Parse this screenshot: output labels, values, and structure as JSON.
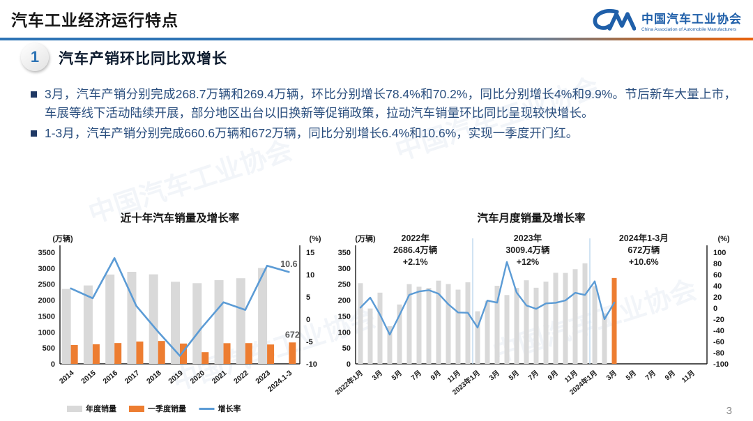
{
  "header": {
    "title": "汽车工业经济运行特点",
    "logo": {
      "monogram": "CM",
      "org_cn": "中国汽车工业协会",
      "org_en": "China Association of Automobile Manufacturers"
    }
  },
  "watermark": "中国汽车工业协会",
  "section": {
    "number": "1",
    "title": "汽车产销环比同比双增长"
  },
  "bullets": [
    "3月，汽车产销分别完成268.7万辆和269.4万辆，环比分别增长78.4%和70.2%，同比分别增长4%和9.9%。节后新车大量上市，车展等线下活动陆续开展，部分地区出台以旧换新等促销政策，拉动汽车销量环比同比呈现较快增长。",
    "1-3月，汽车产销分别完成660.6万辆和672万辆，同比分别增长6.4%和10.6%，实现一季度开门红。"
  ],
  "page_number": "3",
  "colors": {
    "accent_blue": "#2E74B5",
    "bar_gray": "#D9D9D9",
    "bar_orange": "#ED7D31",
    "line_blue": "#5B9BD5",
    "text_navy": "#2A4E7E",
    "separator_blue": "#BDD7EE"
  },
  "chart_data": [
    {
      "type": "bar+line",
      "title": "近十年汽车销量及增长率",
      "unit_left": "(万辆)",
      "unit_right": "(%)",
      "categories": [
        "2014",
        "2015",
        "2016",
        "2017",
        "2018",
        "2019",
        "2020",
        "2021",
        "2022",
        "2023",
        "2024.1-3"
      ],
      "series": [
        {
          "name": "年度销量",
          "type": "bar",
          "axis": "left",
          "color": "#D9D9D9",
          "values": [
            2349.2,
            2459.8,
            2802.8,
            2887.9,
            2808.1,
            2576.9,
            2531.1,
            2627.5,
            2686.4,
            3009.4,
            null
          ]
        },
        {
          "name": "一季度销量",
          "type": "bar",
          "axis": "left",
          "color": "#ED7D31",
          "values": [
            592.2,
            615.3,
            652.7,
            700.2,
            718.3,
            637.2,
            367.2,
            648.4,
            650.9,
            607.6,
            672
          ]
        },
        {
          "name": "增长率",
          "type": "line",
          "axis": "right",
          "color": "#5B9BD5",
          "values": [
            6.9,
            4.7,
            13.7,
            3.0,
            -2.8,
            -8.2,
            -1.9,
            3.8,
            2.1,
            12.0,
            10.6
          ]
        }
      ],
      "left_axis": {
        "min": 0,
        "max": 3500,
        "step": 500
      },
      "right_axis": {
        "min": -10,
        "max": 15,
        "step": 5
      },
      "point_labels": [
        {
          "series": 1,
          "index": 10,
          "text": "672"
        },
        {
          "series": 2,
          "index": 10,
          "text": "10.6"
        }
      ],
      "legend": [
        "年度销量",
        "一季度销量",
        "增长率"
      ],
      "legend_position": "bottom"
    },
    {
      "type": "bar+line",
      "title": "汽车月度销量及增长率",
      "unit_left": "(万辆)",
      "unit_right": "(%)",
      "months_total": 36,
      "x_tick_labels": [
        "2022年1月",
        "3月",
        "5月",
        "7月",
        "9月",
        "11月",
        "2023年1月",
        "3月",
        "5月",
        "7月",
        "9月",
        "11月",
        "2024年1月",
        "3月",
        "5月",
        "7月",
        "9月",
        "11月"
      ],
      "bar_color": "#D9D9D9",
      "highlight_last_bar_color": "#ED7D31",
      "series": [
        {
          "name": "月度销量",
          "type": "bar",
          "axis": "left",
          "values": [
            253.1,
            173.7,
            223.4,
            118.1,
            186.2,
            250.2,
            242.0,
            238.3,
            261.0,
            250.5,
            232.8,
            255.9,
            164.9,
            197.6,
            245.1,
            215.9,
            238.2,
            262.2,
            238.8,
            258.2,
            285.8,
            285.3,
            297.0,
            315.6,
            243.9,
            158.4,
            269.4
          ]
        },
        {
          "name": "增长率",
          "type": "line",
          "axis": "right",
          "color": "#5B9BD5",
          "values": [
            0.9,
            18.7,
            -11.7,
            -47.6,
            -12.6,
            23.8,
            29.7,
            32.1,
            25.7,
            6.9,
            -7.9,
            -8.4,
            -35.0,
            13.5,
            9.7,
            82.7,
            27.9,
            4.8,
            -1.4,
            8.4,
            9.5,
            13.8,
            27.4,
            23.5,
            47.9,
            -19.9,
            9.9
          ]
        }
      ],
      "left_axis": {
        "min": 0,
        "max": 350,
        "step": 50
      },
      "right_axis": {
        "min": -100,
        "max": 100,
        "step": 20
      },
      "year_separators_at_month": [
        12,
        24
      ],
      "annotations": [
        {
          "lines": [
            "2022年",
            "2686.4万辆",
            "+2.1%"
          ],
          "x_frac": 0.17
        },
        {
          "lines": [
            "2023年",
            "3009.4万辆",
            "+12%"
          ],
          "x_frac": 0.49
        },
        {
          "lines": [
            "2024年1-3月",
            "672万辆",
            "+10.6%"
          ],
          "x_frac": 0.82
        }
      ],
      "legend": []
    }
  ]
}
